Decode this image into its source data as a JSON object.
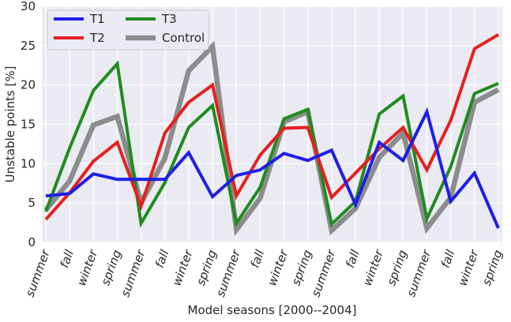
{
  "chart_data": {
    "type": "line",
    "title": "",
    "xlabel": "Model seasons [2000--2004]",
    "ylabel": "Unstable points [%]",
    "ylim": [
      0,
      30
    ],
    "yticks": [
      "0",
      "5",
      "10",
      "15",
      "20",
      "25",
      "30"
    ],
    "grid": true,
    "legend_position": "top-left",
    "background": "#eaeaf2",
    "categories": [
      "summer",
      "fall",
      "winter",
      "spring",
      "summer",
      "fall",
      "winter",
      "spring",
      "summer",
      "fall",
      "winter",
      "spring",
      "summer",
      "fall",
      "winter",
      "spring",
      "summer",
      "fall",
      "winter",
      "spring"
    ],
    "series": [
      {
        "name": "T1",
        "color": "#1f1fe6",
        "values": [
          5.9,
          6.2,
          8.7,
          8.0,
          8.0,
          8.0,
          11.4,
          5.8,
          8.5,
          9.2,
          11.3,
          10.4,
          11.7,
          4.8,
          12.7,
          10.4,
          16.6,
          5.2,
          8.8,
          1.8
        ]
      },
      {
        "name": "T2",
        "color": "#e6201f",
        "values": [
          2.9,
          6.3,
          10.3,
          12.7,
          4.6,
          13.9,
          17.8,
          20.0,
          5.9,
          11.1,
          14.5,
          14.6,
          5.7,
          8.8,
          11.9,
          14.6,
          9.2,
          15.5,
          24.6,
          26.4
        ]
      },
      {
        "name": "T3",
        "color": "#1f8c1f",
        "values": [
          3.9,
          12.0,
          19.3,
          22.7,
          2.4,
          7.6,
          14.6,
          17.4,
          2.4,
          7.0,
          15.7,
          16.9,
          2.3,
          5.2,
          16.3,
          18.6,
          3.0,
          9.6,
          18.9,
          20.2
        ]
      },
      {
        "name": "Control",
        "color": "#8c8c8c",
        "values": [
          4.1,
          7.8,
          14.9,
          16.0,
          5.0,
          10.7,
          21.8,
          24.9,
          1.6,
          5.6,
          15.3,
          16.6,
          1.5,
          4.3,
          10.8,
          13.9,
          1.8,
          5.7,
          17.8,
          19.4
        ]
      }
    ]
  }
}
